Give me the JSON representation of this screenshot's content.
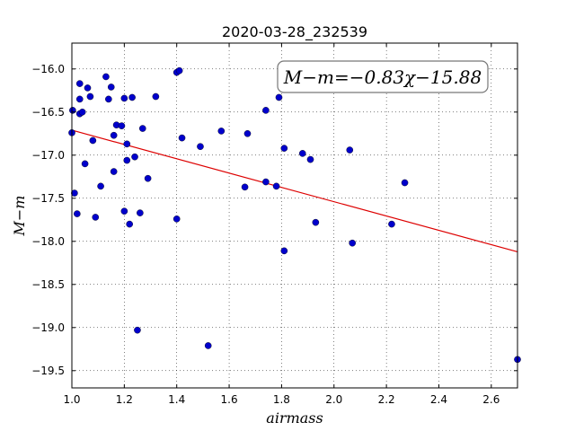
{
  "chart_data": {
    "type": "scatter",
    "title": "2020-03-28_232539",
    "xlabel": "airmass",
    "ylabel": "M−m",
    "xlim": [
      1.0,
      2.7
    ],
    "ylim": [
      -15.7,
      -19.7
    ],
    "x_ticks": [
      "1.0",
      "1.2",
      "1.4",
      "1.6",
      "1.8",
      "2.0",
      "2.2",
      "2.4",
      "2.6"
    ],
    "y_ticks": [
      "−16.0",
      "−16.5",
      "−17.0",
      "−17.5",
      "−18.0",
      "−18.5",
      "−19.0",
      "−19.5"
    ],
    "grid": true,
    "annotation": "M−m=−0.83χ−15.88",
    "fit": {
      "slope": -0.83,
      "intercept": -15.88,
      "color": "#dd0000"
    },
    "point_color": "#0000cc",
    "points": [
      [
        1.0,
        -16.74
      ],
      [
        1.003,
        -16.48
      ],
      [
        1.01,
        -17.44
      ],
      [
        1.02,
        -17.68
      ],
      [
        1.03,
        -16.17
      ],
      [
        1.03,
        -16.35
      ],
      [
        1.03,
        -16.52
      ],
      [
        1.04,
        -16.5
      ],
      [
        1.05,
        -17.1
      ],
      [
        1.06,
        -16.22
      ],
      [
        1.07,
        -16.32
      ],
      [
        1.08,
        -16.83
      ],
      [
        1.09,
        -17.72
      ],
      [
        1.11,
        -17.36
      ],
      [
        1.13,
        -16.09
      ],
      [
        1.14,
        -16.35
      ],
      [
        1.15,
        -16.21
      ],
      [
        1.16,
        -17.19
      ],
      [
        1.16,
        -16.77
      ],
      [
        1.17,
        -16.65
      ],
      [
        1.19,
        -16.66
      ],
      [
        1.2,
        -16.34
      ],
      [
        1.2,
        -17.65
      ],
      [
        1.21,
        -17.06
      ],
      [
        1.21,
        -16.87
      ],
      [
        1.22,
        -17.8
      ],
      [
        1.23,
        -16.33
      ],
      [
        1.24,
        -17.02
      ],
      [
        1.25,
        -19.03
      ],
      [
        1.26,
        -17.67
      ],
      [
        1.27,
        -16.69
      ],
      [
        1.29,
        -17.27
      ],
      [
        1.32,
        -16.32
      ],
      [
        1.4,
        -16.04
      ],
      [
        1.4,
        -17.74
      ],
      [
        1.41,
        -16.02
      ],
      [
        1.42,
        -16.8
      ],
      [
        1.49,
        -16.9
      ],
      [
        1.52,
        -19.21
      ],
      [
        1.57,
        -16.72
      ],
      [
        1.66,
        -17.37
      ],
      [
        1.67,
        -16.75
      ],
      [
        1.74,
        -16.48
      ],
      [
        1.74,
        -17.31
      ],
      [
        1.78,
        -17.36
      ],
      [
        1.79,
        -16.33
      ],
      [
        1.81,
        -16.92
      ],
      [
        1.81,
        -18.11
      ],
      [
        1.88,
        -16.98
      ],
      [
        1.91,
        -17.05
      ],
      [
        1.93,
        -17.78
      ],
      [
        2.06,
        -16.94
      ],
      [
        2.07,
        -18.02
      ],
      [
        2.22,
        -17.8
      ],
      [
        2.27,
        -17.32
      ],
      [
        2.7,
        -19.37
      ]
    ]
  }
}
